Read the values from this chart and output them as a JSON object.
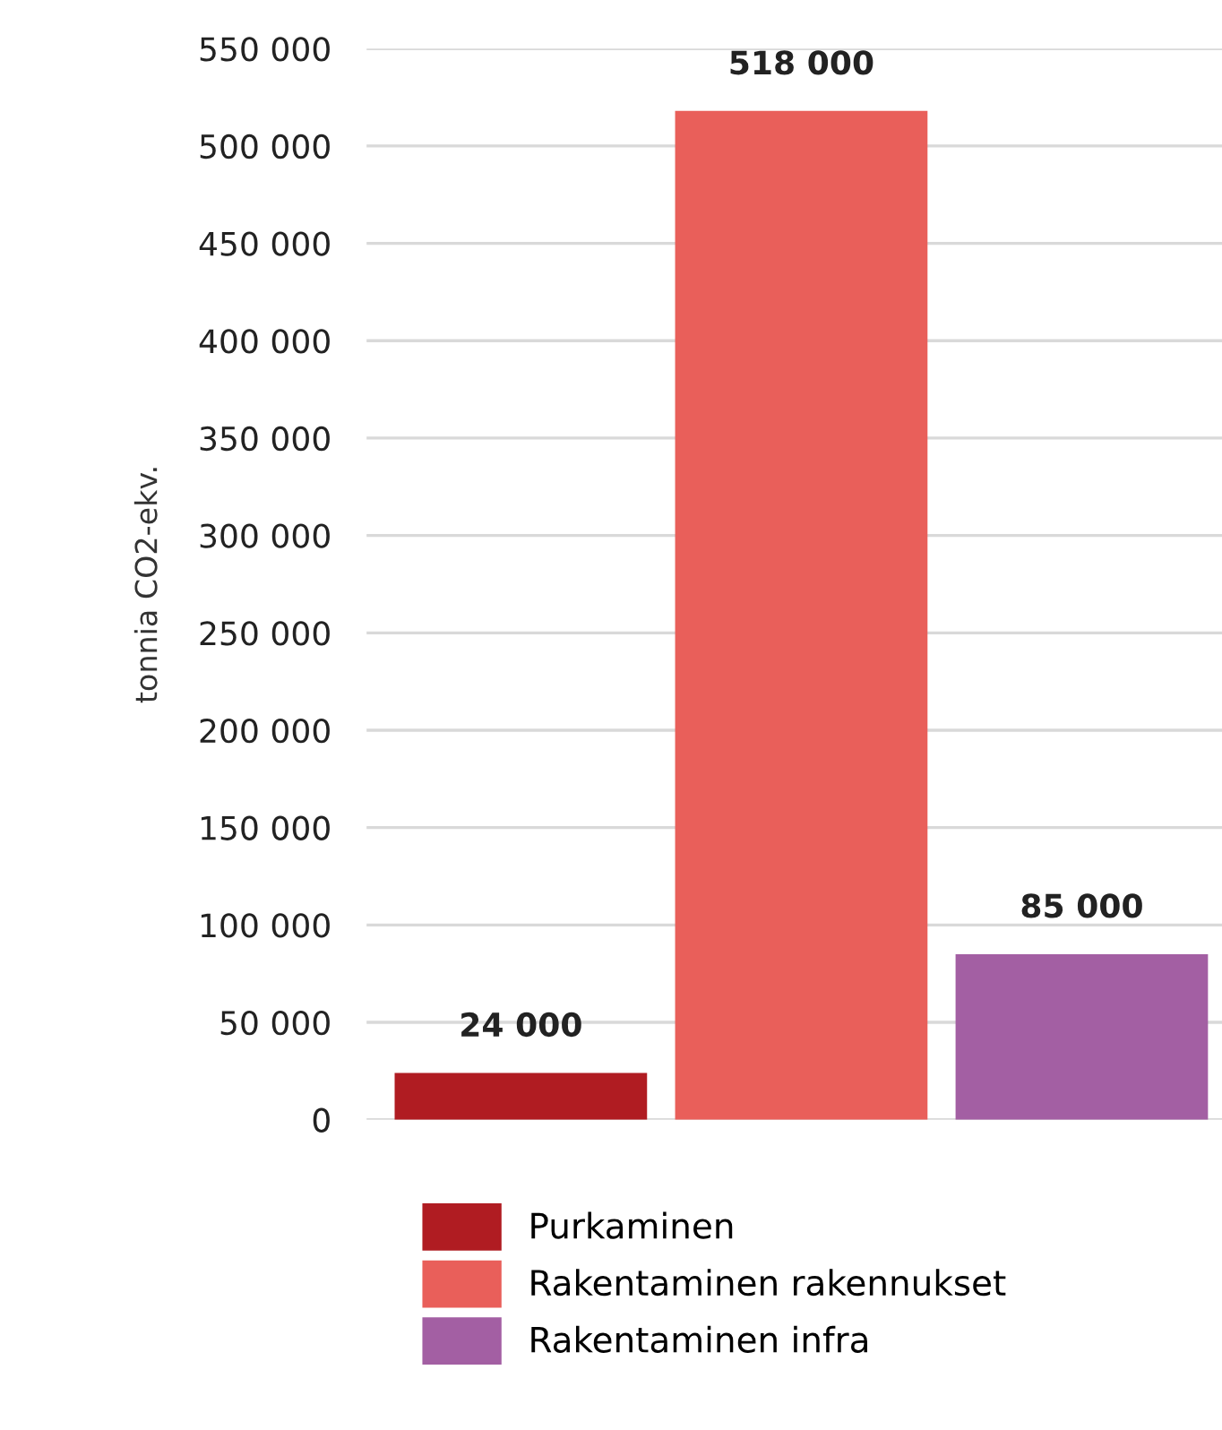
{
  "chart_data": {
    "type": "bar",
    "categories": [
      null,
      null,
      null
    ],
    "series": [
      {
        "name": "Purkaminen",
        "color": "#b01c22",
        "values": [
          24000,
          null,
          null
        ],
        "value_labels": [
          "24 000",
          null,
          null
        ]
      },
      {
        "name": "Rakentaminen rakennukset",
        "color": "#e95f5a",
        "values": [
          null,
          518000,
          null
        ],
        "value_labels": [
          null,
          "518 000",
          null
        ]
      },
      {
        "name": "Rakentaminen infra",
        "color": "#a35fa3",
        "values": [
          null,
          null,
          85000
        ],
        "value_labels": [
          null,
          null,
          "85 000"
        ]
      }
    ],
    "ylabel": "tonnia CO2-ekv.",
    "ylim": [
      0,
      550000
    ],
    "yticks": [
      {
        "value": 0,
        "label": "0"
      },
      {
        "value": 50000,
        "label": "50 000"
      },
      {
        "value": 100000,
        "label": "100 000"
      },
      {
        "value": 150000,
        "label": "150 000"
      },
      {
        "value": 200000,
        "label": "200 000"
      },
      {
        "value": 250000,
        "label": "250 000"
      },
      {
        "value": 300000,
        "label": "300 000"
      },
      {
        "value": 350000,
        "label": "350 000"
      },
      {
        "value": 400000,
        "label": "400 000"
      },
      {
        "value": 450000,
        "label": "450 000"
      },
      {
        "value": 500000,
        "label": "500 000"
      },
      {
        "value": 550000,
        "label": "550 000"
      }
    ],
    "grid": "y",
    "legend": "bottom"
  }
}
